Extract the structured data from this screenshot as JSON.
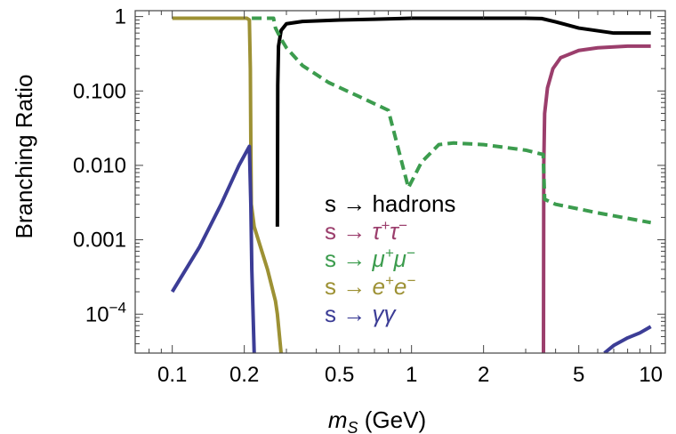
{
  "chart_data": {
    "type": "line",
    "xlabel": {
      "var": "m",
      "sub": "S",
      "unit": " (GeV)"
    },
    "ylabel": "Branching Ratio",
    "x_scale": "log",
    "y_scale": "log",
    "xlim": [
      0.07,
      11.5
    ],
    "ylim": [
      3e-05,
      1.2
    ],
    "x_ticks": [
      {
        "v": 0.1,
        "label": "0.1"
      },
      {
        "v": 0.2,
        "label": "0.2"
      },
      {
        "v": 0.5,
        "label": "0.5"
      },
      {
        "v": 1,
        "label": "1"
      },
      {
        "v": 2,
        "label": "2"
      },
      {
        "v": 5,
        "label": "5"
      },
      {
        "v": 10,
        "label": "10"
      }
    ],
    "y_ticks": [
      {
        "v": 1,
        "label": "1"
      },
      {
        "v": 0.1,
        "label": "0.100"
      },
      {
        "v": 0.01,
        "label": "0.010"
      },
      {
        "v": 0.001,
        "label": "0.001"
      },
      {
        "v": 0.0001,
        "label": "10",
        "sup": "−4"
      }
    ],
    "series": [
      {
        "name": "s → hadrons",
        "color": "#000000",
        "dash": "none",
        "points": [
          [
            0.275,
            0.0015
          ],
          [
            0.276,
            0.12
          ],
          [
            0.278,
            0.4
          ],
          [
            0.285,
            0.65
          ],
          [
            0.3,
            0.8
          ],
          [
            0.35,
            0.86
          ],
          [
            0.5,
            0.9
          ],
          [
            0.7,
            0.92
          ],
          [
            1.0,
            0.95
          ],
          [
            2.0,
            0.95
          ],
          [
            3.0,
            0.95
          ],
          [
            3.5,
            0.94
          ],
          [
            4.0,
            0.85
          ],
          [
            5.0,
            0.7
          ],
          [
            7.0,
            0.6
          ],
          [
            10.0,
            0.6
          ]
        ]
      },
      {
        "name": "s → τ⁺τ⁻",
        "color": "#9b3e6c",
        "dash": "none",
        "points": [
          [
            3.56,
            3e-05
          ],
          [
            3.57,
            0.01
          ],
          [
            3.6,
            0.05
          ],
          [
            3.7,
            0.11
          ],
          [
            3.9,
            0.2
          ],
          [
            4.2,
            0.28
          ],
          [
            5.0,
            0.35
          ],
          [
            6.0,
            0.38
          ],
          [
            8.0,
            0.4
          ],
          [
            10.0,
            0.4
          ]
        ]
      },
      {
        "name": "s → μ⁺μ⁻",
        "color": "#3c9c4e",
        "dash": "dashed",
        "points": [
          [
            0.215,
            0.95
          ],
          [
            0.25,
            0.95
          ],
          [
            0.265,
            0.95
          ],
          [
            0.27,
            0.7
          ],
          [
            0.285,
            0.5
          ],
          [
            0.3,
            0.38
          ],
          [
            0.35,
            0.22
          ],
          [
            0.45,
            0.13
          ],
          [
            0.6,
            0.085
          ],
          [
            0.8,
            0.055
          ],
          [
            0.97,
            0.005
          ],
          [
            1.1,
            0.011
          ],
          [
            1.3,
            0.019
          ],
          [
            1.5,
            0.02
          ],
          [
            2.0,
            0.019
          ],
          [
            3.0,
            0.016
          ],
          [
            3.55,
            0.014
          ],
          [
            3.6,
            0.0035
          ],
          [
            4.0,
            0.003
          ],
          [
            6.0,
            0.0023
          ],
          [
            10.0,
            0.0017
          ]
        ]
      },
      {
        "name": "s → e⁺e⁻",
        "color": "#9d9134",
        "dash": "none",
        "points": [
          [
            0.1,
            0.95
          ],
          [
            0.15,
            0.95
          ],
          [
            0.2,
            0.95
          ],
          [
            0.205,
            0.95
          ],
          [
            0.21,
            0.9
          ],
          [
            0.212,
            0.2
          ],
          [
            0.213,
            0.02
          ],
          [
            0.214,
            0.003
          ],
          [
            0.22,
            0.0015
          ],
          [
            0.25,
            0.0004
          ],
          [
            0.27,
            0.00015
          ],
          [
            0.275,
            0.0001
          ],
          [
            0.285,
            3e-05
          ]
        ]
      },
      {
        "name": "s → γγ",
        "color": "#3c3d96",
        "dash": "none",
        "points": [
          [
            0.1,
            0.0002
          ],
          [
            0.13,
            0.0008
          ],
          [
            0.16,
            0.003
          ],
          [
            0.19,
            0.01
          ],
          [
            0.21,
            0.018
          ],
          [
            0.213,
            0.003
          ],
          [
            0.215,
            0.0004
          ],
          [
            0.22,
            3e-05
          ]
        ],
        "points2": [
          [
            6.4,
            3e-05
          ],
          [
            7.0,
            3.8e-05
          ],
          [
            8.0,
            4.8e-05
          ],
          [
            9.0,
            5.6e-05
          ],
          [
            10.0,
            6.8e-05
          ]
        ]
      }
    ],
    "legend": {
      "placement": "lower-middle",
      "entries": [
        {
          "prefix": "s → ",
          "text": "hadrons",
          "color": "#000000",
          "italic": false
        },
        {
          "prefix": "s → ",
          "parts": [
            [
              "τ",
              ""
            ],
            [
              "+",
              "sup"
            ],
            [
              "τ",
              ""
            ],
            [
              "−",
              "sup"
            ]
          ],
          "color": "#9b3e6c",
          "italic": true
        },
        {
          "prefix": "s → ",
          "parts": [
            [
              "μ",
              ""
            ],
            [
              "+",
              "sup"
            ],
            [
              "μ",
              ""
            ],
            [
              "−",
              "sup"
            ]
          ],
          "color": "#3c9c4e",
          "italic": true
        },
        {
          "prefix": "s → ",
          "parts": [
            [
              "e",
              ""
            ],
            [
              "+",
              "sup"
            ],
            [
              "e",
              ""
            ],
            [
              "−",
              "sup"
            ]
          ],
          "color": "#9d9134",
          "italic": true
        },
        {
          "prefix": "s → ",
          "parts": [
            [
              "γγ",
              ""
            ]
          ],
          "color": "#3c3d96",
          "italic": true
        }
      ]
    }
  }
}
